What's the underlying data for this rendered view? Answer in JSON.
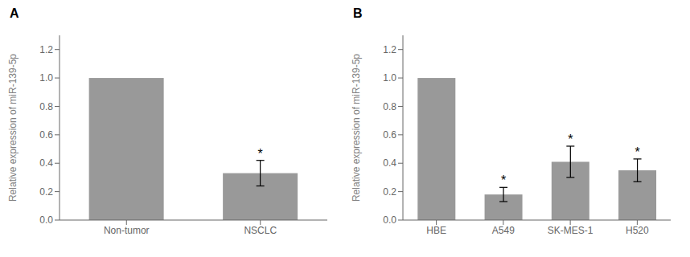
{
  "chart_data": [
    {
      "type": "bar",
      "title": "A",
      "categories": [
        "Non-tumor",
        "NSCLC"
      ],
      "values": [
        1.0,
        0.33
      ],
      "errors": [
        0.0,
        0.09
      ],
      "annotations": [
        {
          "category": "NSCLC",
          "text": "*"
        }
      ],
      "ylabel": "Relative expression of miR-139-5p",
      "ylim": [
        0,
        1.3
      ],
      "yticks": [
        {
          "value": 0,
          "label": "0.0"
        },
        0.2,
        0.4,
        0.6,
        0.8,
        {
          "value": 1,
          "label": "1.0"
        },
        1.2
      ],
      "color": "#999999"
    },
    {
      "type": "bar",
      "title": "B",
      "categories": [
        "HBE",
        "A549",
        "SK-MES-1",
        "H520"
      ],
      "values": [
        1.0,
        0.18,
        0.41,
        0.35
      ],
      "errors": [
        0.0,
        0.05,
        0.11,
        0.08
      ],
      "annotations": [
        {
          "category": "A549",
          "text": "*"
        },
        {
          "category": "SK-MES-1",
          "text": "*"
        },
        {
          "category": "H520",
          "text": "*"
        }
      ],
      "ylabel": "Relative expression of miR-139-5p",
      "ylim": [
        0,
        1.3
      ],
      "yticks": [
        {
          "value": 0,
          "label": "0.0"
        },
        0.2,
        0.4,
        0.6,
        0.8,
        {
          "value": 1,
          "label": "1.0"
        },
        1.2
      ],
      "color": "#999999"
    }
  ]
}
